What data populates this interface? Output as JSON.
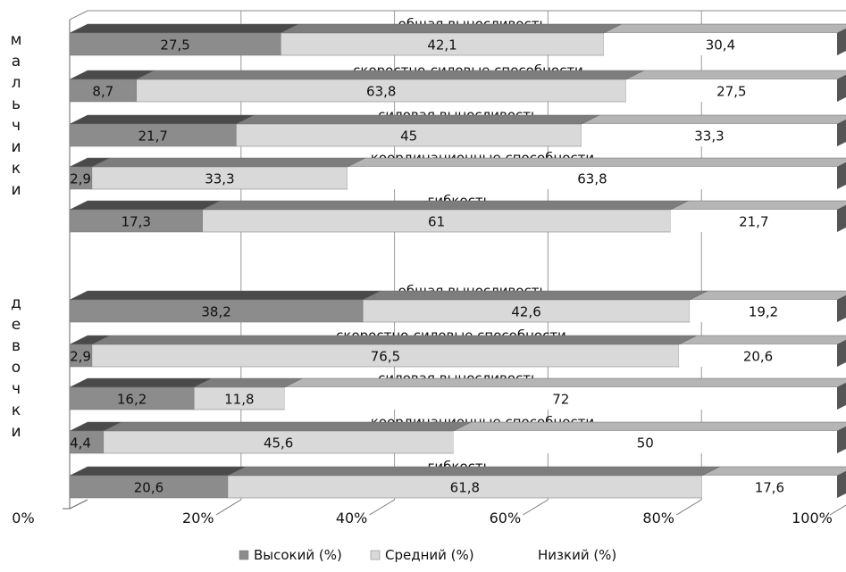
{
  "chart_data": {
    "type": "bar",
    "orientation": "horizontal",
    "stacked": "percent",
    "groups": [
      {
        "label": "мальчики",
        "categories": [
          "общая выносливость",
          "скоростно-силовые способности",
          "силовая выносливость",
          "координационные способности",
          "гибкость"
        ],
        "series": [
          {
            "name": "Высокий (%)",
            "values": [
              27.5,
              8.7,
              21.7,
              2.9,
              17.3
            ]
          },
          {
            "name": "Средний (%)",
            "values": [
              42.1,
              63.8,
              45,
              33.3,
              61
            ]
          },
          {
            "name": "Низкий (%)",
            "values": [
              30.4,
              27.5,
              33.3,
              63.8,
              21.7
            ]
          }
        ]
      },
      {
        "label": "девочки",
        "categories": [
          "общая выносливость",
          "скоростно-силовые способности",
          "силовая выносливость",
          "координационные способности",
          "гибкость"
        ],
        "series": [
          {
            "name": "Высокий (%)",
            "values": [
              38.2,
              2.9,
              16.2,
              4.4,
              20.6
            ]
          },
          {
            "name": "Средний (%)",
            "values": [
              42.6,
              76.5,
              11.8,
              45.6,
              61.8
            ]
          },
          {
            "name": "Низкий (%)",
            "values": [
              19.2,
              20.6,
              72,
              50,
              17.6
            ]
          }
        ]
      }
    ],
    "x_ticks": [
      "0%",
      "20%",
      "40%",
      "60%",
      "80%",
      "100%"
    ],
    "xlim": [
      0,
      100
    ],
    "grid": true,
    "legend_position": "bottom",
    "colors": [
      "#8c8c8c",
      "#d9d9d9",
      "#ffffff"
    ]
  }
}
